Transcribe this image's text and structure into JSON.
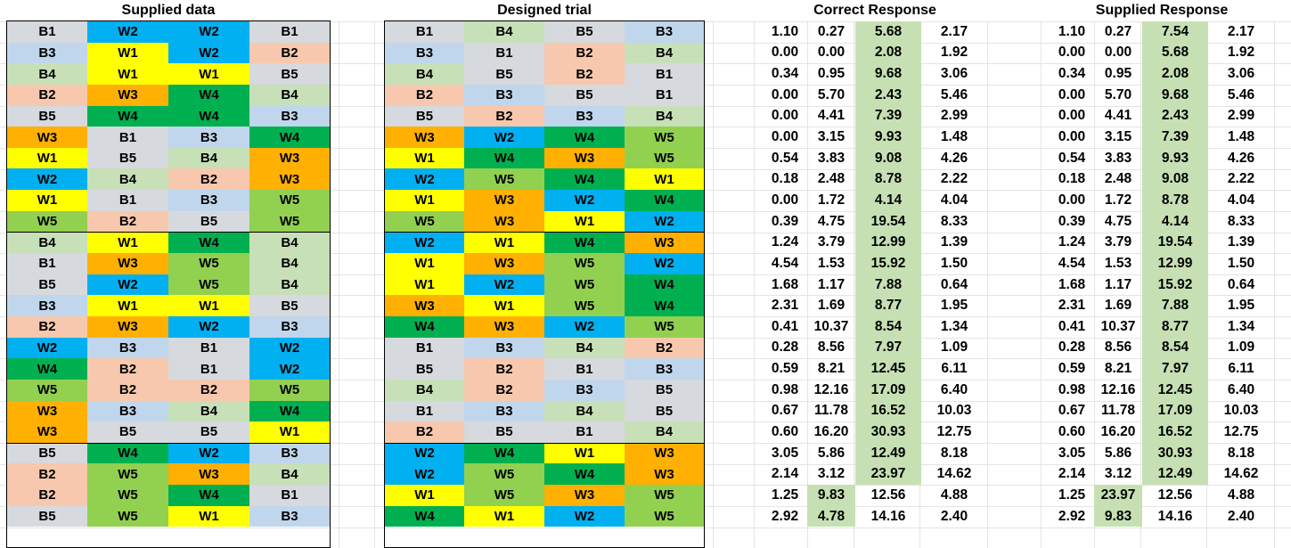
{
  "headers": {
    "supplied_data": "Supplied data",
    "designed_trial": "Designed trial",
    "correct_response": "Correct Response",
    "supplied_response": "Supplied Response"
  },
  "colors": {
    "B1": "#d6d9dd",
    "B2": "#f7c8ad",
    "B3": "#c0d6ec",
    "B4": "#c7e0b8",
    "B5": "#d6d9dd",
    "W1": "#ffff00",
    "W2": "#00b0f0",
    "W3": "#ffb000",
    "W4": "#00b050",
    "W5": "#92d050",
    "highlight": "#c6e0b4",
    "grid_line": "#e4e4e4"
  },
  "supplied_data": [
    [
      "B1",
      "W2",
      "W2",
      "B1"
    ],
    [
      "B3",
      "W1",
      "W2",
      "B2"
    ],
    [
      "B4",
      "W1",
      "W1",
      "B5"
    ],
    [
      "B2",
      "W3",
      "W4",
      "B4"
    ],
    [
      "B5",
      "W4",
      "W4",
      "B3"
    ],
    [
      "W3",
      "B1",
      "B3",
      "W4"
    ],
    [
      "W1",
      "B5",
      "B4",
      "W3"
    ],
    [
      "W2",
      "B4",
      "B2",
      "W3"
    ],
    [
      "W1",
      "B1",
      "B3",
      "W5"
    ],
    [
      "W5",
      "B2",
      "B5",
      "W5"
    ],
    [
      "B4",
      "W1",
      "W4",
      "B4"
    ],
    [
      "B1",
      "W3",
      "W5",
      "B4"
    ],
    [
      "B5",
      "W2",
      "W5",
      "B4"
    ],
    [
      "B3",
      "W1",
      "W1",
      "B5"
    ],
    [
      "B2",
      "W3",
      "W2",
      "B3"
    ],
    [
      "W2",
      "B3",
      "B1",
      "W2"
    ],
    [
      "W4",
      "B2",
      "B1",
      "W2"
    ],
    [
      "W5",
      "B2",
      "B2",
      "W5"
    ],
    [
      "W3",
      "B3",
      "B4",
      "W4"
    ],
    [
      "W3",
      "B5",
      "B5",
      "W1"
    ],
    [
      "B5",
      "W4",
      "W2",
      "B3"
    ],
    [
      "B2",
      "W5",
      "W3",
      "B4"
    ],
    [
      "B2",
      "W5",
      "W4",
      "B1"
    ],
    [
      "B5",
      "W5",
      "W1",
      "B3"
    ]
  ],
  "designed_trial": [
    [
      "B1",
      "B4",
      "B5",
      "B3"
    ],
    [
      "B3",
      "B1",
      "B2",
      "B4"
    ],
    [
      "B4",
      "B5",
      "B2",
      "B1"
    ],
    [
      "B2",
      "B3",
      "B5",
      "B1"
    ],
    [
      "B5",
      "B2",
      "B3",
      "B4"
    ],
    [
      "W3",
      "W2",
      "W4",
      "W5"
    ],
    [
      "W1",
      "W4",
      "W3",
      "W5"
    ],
    [
      "W2",
      "W5",
      "W4",
      "W1"
    ],
    [
      "W1",
      "W3",
      "W2",
      "W4"
    ],
    [
      "W5",
      "W3",
      "W1",
      "W2"
    ],
    [
      "W2",
      "W1",
      "W4",
      "W3"
    ],
    [
      "W1",
      "W3",
      "W5",
      "W2"
    ],
    [
      "W1",
      "W2",
      "W5",
      "W4"
    ],
    [
      "W3",
      "W1",
      "W5",
      "W4"
    ],
    [
      "W4",
      "W3",
      "W2",
      "W5"
    ],
    [
      "B1",
      "B3",
      "B4",
      "B2"
    ],
    [
      "B5",
      "B2",
      "B1",
      "B3"
    ],
    [
      "B4",
      "B2",
      "B3",
      "B5"
    ],
    [
      "B1",
      "B3",
      "B4",
      "B5"
    ],
    [
      "B2",
      "B5",
      "B1",
      "B4"
    ],
    [
      "W2",
      "W4",
      "W1",
      "W3"
    ],
    [
      "W2",
      "W5",
      "W4",
      "W3"
    ],
    [
      "W1",
      "W5",
      "W3",
      "W5"
    ],
    [
      "W4",
      "W1",
      "W2",
      "W5"
    ]
  ],
  "correct_response": [
    [
      "1.10",
      "0.27",
      "5.68",
      "2.17"
    ],
    [
      "0.00",
      "0.00",
      "2.08",
      "1.92"
    ],
    [
      "0.34",
      "0.95",
      "9.68",
      "3.06"
    ],
    [
      "0.00",
      "5.70",
      "2.43",
      "5.46"
    ],
    [
      "0.00",
      "4.41",
      "7.39",
      "2.99"
    ],
    [
      "0.00",
      "3.15",
      "9.93",
      "1.48"
    ],
    [
      "0.54",
      "3.83",
      "9.08",
      "4.26"
    ],
    [
      "0.18",
      "2.48",
      "8.78",
      "2.22"
    ],
    [
      "0.00",
      "1.72",
      "4.14",
      "4.04"
    ],
    [
      "0.39",
      "4.75",
      "19.54",
      "8.33"
    ],
    [
      "1.24",
      "3.79",
      "12.99",
      "1.39"
    ],
    [
      "4.54",
      "1.53",
      "15.92",
      "1.50"
    ],
    [
      "1.68",
      "1.17",
      "7.88",
      "0.64"
    ],
    [
      "2.31",
      "1.69",
      "8.77",
      "1.95"
    ],
    [
      "0.41",
      "10.37",
      "8.54",
      "1.34"
    ],
    [
      "0.28",
      "8.56",
      "7.97",
      "1.09"
    ],
    [
      "0.59",
      "8.21",
      "12.45",
      "6.11"
    ],
    [
      "0.98",
      "12.16",
      "17.09",
      "6.40"
    ],
    [
      "0.67",
      "11.78",
      "16.52",
      "10.03"
    ],
    [
      "0.60",
      "16.20",
      "30.93",
      "12.75"
    ],
    [
      "3.05",
      "5.86",
      "12.49",
      "8.18"
    ],
    [
      "2.14",
      "3.12",
      "23.97",
      "14.62"
    ],
    [
      "1.25",
      "9.83",
      "12.56",
      "4.88"
    ],
    [
      "2.92",
      "4.78",
      "14.16",
      "2.40"
    ]
  ],
  "correct_highlight": [
    [
      2
    ],
    [
      2
    ],
    [
      2
    ],
    [
      2
    ],
    [
      2
    ],
    [
      2
    ],
    [
      2
    ],
    [
      2
    ],
    [
      2
    ],
    [
      2
    ],
    [
      2
    ],
    [
      2
    ],
    [
      2
    ],
    [
      2
    ],
    [
      2
    ],
    [
      2
    ],
    [
      2
    ],
    [
      2
    ],
    [
      2
    ],
    [
      2
    ],
    [
      2
    ],
    [
      2
    ],
    [
      1
    ],
    [
      1
    ]
  ],
  "supplied_response": [
    [
      "1.10",
      "0.27",
      "7.54",
      "2.17"
    ],
    [
      "0.00",
      "0.00",
      "5.68",
      "1.92"
    ],
    [
      "0.34",
      "0.95",
      "2.08",
      "3.06"
    ],
    [
      "0.00",
      "5.70",
      "9.68",
      "5.46"
    ],
    [
      "0.00",
      "4.41",
      "2.43",
      "2.99"
    ],
    [
      "0.00",
      "3.15",
      "7.39",
      "1.48"
    ],
    [
      "0.54",
      "3.83",
      "9.93",
      "4.26"
    ],
    [
      "0.18",
      "2.48",
      "9.08",
      "2.22"
    ],
    [
      "0.00",
      "1.72",
      "8.78",
      "4.04"
    ],
    [
      "0.39",
      "4.75",
      "4.14",
      "8.33"
    ],
    [
      "1.24",
      "3.79",
      "19.54",
      "1.39"
    ],
    [
      "4.54",
      "1.53",
      "12.99",
      "1.50"
    ],
    [
      "1.68",
      "1.17",
      "15.92",
      "0.64"
    ],
    [
      "2.31",
      "1.69",
      "7.88",
      "1.95"
    ],
    [
      "0.41",
      "10.37",
      "8.77",
      "1.34"
    ],
    [
      "0.28",
      "8.56",
      "8.54",
      "1.09"
    ],
    [
      "0.59",
      "8.21",
      "7.97",
      "6.11"
    ],
    [
      "0.98",
      "12.16",
      "12.45",
      "6.40"
    ],
    [
      "0.67",
      "11.78",
      "17.09",
      "10.03"
    ],
    [
      "0.60",
      "16.20",
      "16.52",
      "12.75"
    ],
    [
      "3.05",
      "5.86",
      "30.93",
      "8.18"
    ],
    [
      "2.14",
      "3.12",
      "12.49",
      "14.62"
    ],
    [
      "1.25",
      "23.97",
      "12.56",
      "4.88"
    ],
    [
      "2.92",
      "9.83",
      "14.16",
      "2.40"
    ]
  ],
  "supplied_highlight": [
    [
      2
    ],
    [
      2
    ],
    [
      2
    ],
    [
      2
    ],
    [
      2
    ],
    [
      2
    ],
    [
      2
    ],
    [
      2
    ],
    [
      2
    ],
    [
      2
    ],
    [
      2
    ],
    [
      2
    ],
    [
      2
    ],
    [
      2
    ],
    [
      2
    ],
    [
      2
    ],
    [
      2
    ],
    [
      2
    ],
    [
      2
    ],
    [
      2
    ],
    [
      2
    ],
    [
      2
    ],
    [
      1
    ],
    [
      1
    ]
  ]
}
